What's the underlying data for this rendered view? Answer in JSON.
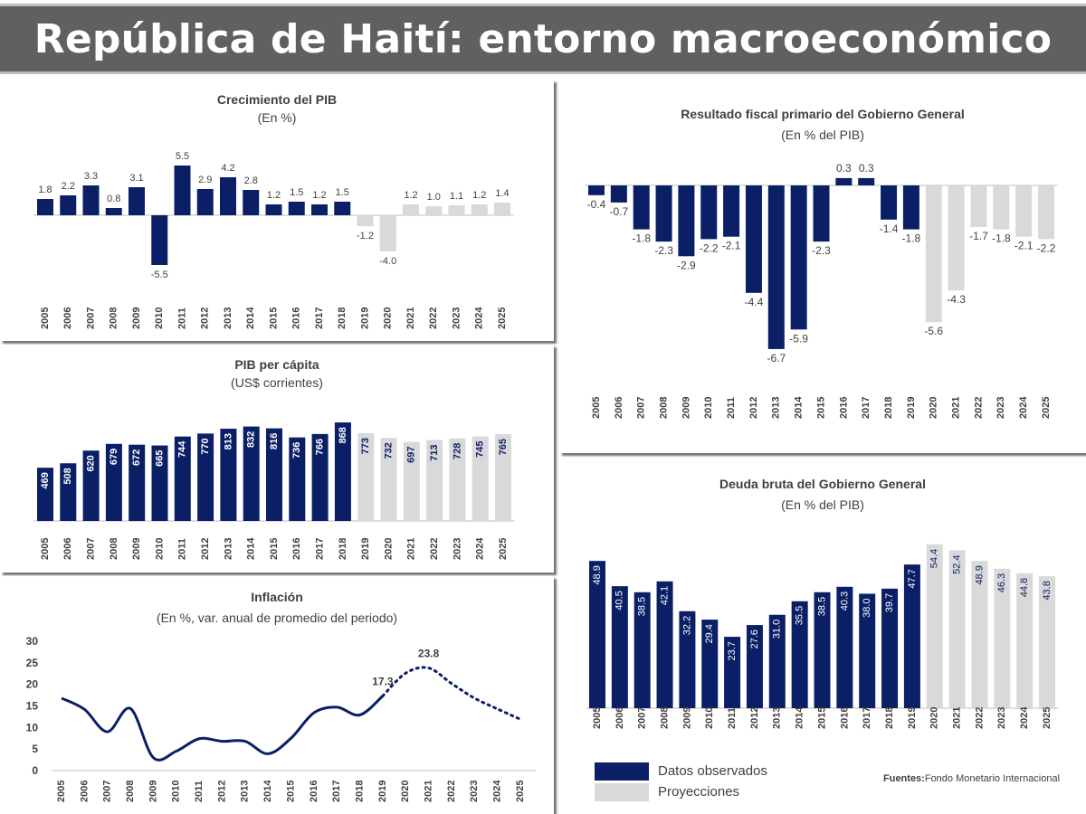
{
  "page": {
    "title": "República de Haití: entorno macroeconómico",
    "legend": {
      "observed": "Datos observados",
      "projected": "Proyecciones"
    },
    "source_label": "Fuentes:",
    "source_text": "Fondo  Monetario Internacional",
    "colors": {
      "observed": "#0b1f66",
      "projected": "#d9d9d9",
      "line": "#0b1f66"
    }
  },
  "chart_data": [
    {
      "id": "pib",
      "type": "bar",
      "title": "Crecimiento del PIB",
      "subtitle": "(En %)",
      "categories": [
        "2005",
        "2006",
        "2007",
        "2008",
        "2009",
        "2010",
        "2011",
        "2012",
        "2013",
        "2014",
        "2015",
        "2016",
        "2017",
        "2018",
        "2019",
        "2020",
        "2021",
        "2022",
        "2023",
        "2024",
        "2025"
      ],
      "values": [
        1.8,
        2.2,
        3.3,
        0.8,
        3.1,
        -5.5,
        5.5,
        2.9,
        4.2,
        2.8,
        1.2,
        1.5,
        1.2,
        1.5,
        -1.2,
        -4.0,
        1.2,
        1.0,
        1.1,
        1.2,
        1.4
      ],
      "labels": [
        "1.8",
        "2.2",
        "3.3",
        "0.8",
        "3.1",
        "-5.5",
        "5.5",
        "2.9",
        "4.2",
        "2.8",
        "1.2",
        "1.5",
        "1.2",
        "1.5",
        "-1.2",
        "-4.0",
        "1.2",
        "1.0",
        "1.1",
        "1.2",
        "1.4"
      ],
      "projected_from_index": 14,
      "label_position": "outside"
    },
    {
      "id": "pib_pc",
      "type": "bar",
      "title": "PIB per cápita",
      "subtitle": "(US$ corrientes)",
      "categories": [
        "2005",
        "2006",
        "2007",
        "2008",
        "2009",
        "2010",
        "2011",
        "2012",
        "2013",
        "2014",
        "2015",
        "2016",
        "2017",
        "2018",
        "2019",
        "2020",
        "2021",
        "2022",
        "2023",
        "2024",
        "2025"
      ],
      "values": [
        469,
        508,
        620,
        679,
        672,
        665,
        744,
        770,
        813,
        832,
        816,
        736,
        766,
        868,
        773,
        732,
        697,
        713,
        728,
        745,
        765
      ],
      "labels": [
        "469",
        "508",
        "620",
        "679",
        "672",
        "665",
        "744",
        "770",
        "813",
        "832",
        "816",
        "736",
        "766",
        "868",
        "773",
        "732",
        "697",
        "713",
        "728",
        "745",
        "765"
      ],
      "projected_from_index": 14,
      "label_position": "inside-vertical"
    },
    {
      "id": "inflacion",
      "type": "line",
      "title": "Inflación",
      "subtitle": "(En %, var. anual de promedio del periodo)",
      "x": [
        "2005",
        "2006",
        "2007",
        "2008",
        "2009",
        "2010",
        "2011",
        "2012",
        "2013",
        "2014",
        "2015",
        "2016",
        "2017",
        "2018",
        "2019",
        "2020",
        "2021",
        "2022",
        "2023",
        "2024",
        "2025"
      ],
      "values": [
        16.8,
        14.2,
        9.0,
        14.4,
        3.0,
        4.5,
        7.4,
        6.8,
        6.8,
        3.9,
        7.5,
        13.4,
        14.7,
        12.9,
        17.3,
        22.6,
        23.8,
        20.2,
        16.8,
        14.3,
        11.9
      ],
      "projected_from_index": 14,
      "annotations": [
        {
          "index": 14,
          "text": "17.3"
        },
        {
          "index": 16,
          "text": "23.8"
        }
      ],
      "ylim": [
        0,
        30
      ],
      "yticks": [
        "0",
        "5",
        "10",
        "15",
        "20",
        "25",
        "30"
      ]
    },
    {
      "id": "fiscal",
      "type": "bar",
      "title": "Resultado fiscal primario del Gobierno General",
      "subtitle": "(En % del PIB)",
      "categories": [
        "2005",
        "2006",
        "2007",
        "2008",
        "2009",
        "2010",
        "2011",
        "2012",
        "2013",
        "2014",
        "2015",
        "2016",
        "2017",
        "2018",
        "2019",
        "2020",
        "2021",
        "2022",
        "2023",
        "2024",
        "2025"
      ],
      "values": [
        -0.4,
        -0.7,
        -1.8,
        -2.3,
        -2.9,
        -2.2,
        -2.1,
        -4.4,
        -6.7,
        -5.9,
        -2.3,
        0.3,
        0.3,
        -1.4,
        -1.8,
        -5.6,
        -4.3,
        -1.7,
        -1.8,
        -2.1,
        -2.2
      ],
      "labels": [
        "-0.4",
        "-0.7",
        "-1.8",
        "-2.3",
        "-2.9",
        "-2.2",
        "-2.1",
        "-4.4",
        "-6.7",
        "-5.9",
        "-2.3",
        "0.3",
        "0.3",
        "-1.4",
        "-1.8",
        "-5.6",
        "-4.3",
        "-1.7",
        "-1.8",
        "-2.1",
        "-2.2"
      ],
      "projected_from_index": 15,
      "label_position": "outside"
    },
    {
      "id": "deuda",
      "type": "bar",
      "title": "Deuda bruta del Gobierno General",
      "subtitle": "(En % del PIB)",
      "categories": [
        "2005",
        "2006",
        "2007",
        "2008",
        "2009",
        "2010",
        "2011",
        "2012",
        "2013",
        "2014",
        "2015",
        "2016",
        "2017",
        "2018",
        "2019",
        "2020",
        "2021",
        "2022",
        "2023",
        "2024",
        "2025"
      ],
      "values": [
        48.9,
        40.5,
        38.5,
        42.1,
        32.2,
        29.4,
        23.7,
        27.6,
        31.0,
        35.5,
        38.5,
        40.3,
        38.0,
        39.7,
        47.7,
        54.4,
        52.4,
        48.9,
        46.3,
        44.8,
        43.8
      ],
      "labels": [
        "48.9",
        "40.5",
        "38.5",
        "42.1",
        "32.2",
        "29.4",
        "23.7",
        "27.6",
        "31.0",
        "35.5",
        "38.5",
        "40.3",
        "38.0",
        "39.7",
        "47.7",
        "54.4",
        "52.4",
        "48.9",
        "46.3",
        "44.8",
        "43.8"
      ],
      "projected_from_index": 15,
      "label_position": "inside-vertical"
    }
  ]
}
